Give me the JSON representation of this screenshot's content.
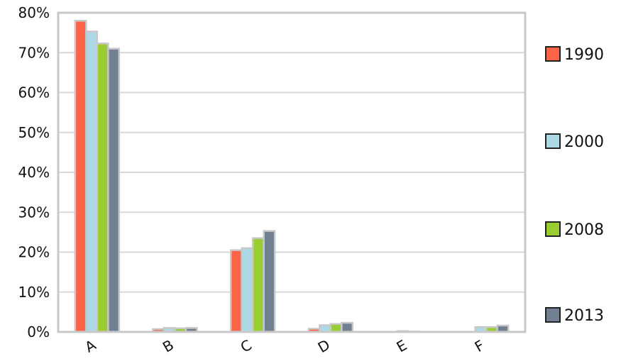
{
  "chart_data": {
    "type": "bar",
    "title": "",
    "xlabel": "",
    "ylabel": "",
    "categories": [
      "A",
      "B",
      "C",
      "D",
      "E",
      "F"
    ],
    "series": [
      {
        "name": "1990",
        "color": "#ff6347",
        "values": [
          78.0,
          0.7,
          20.5,
          0.8,
          0.0,
          0.0
        ]
      },
      {
        "name": "2000",
        "color": "#add8e6",
        "values": [
          75.3,
          1.0,
          21.0,
          1.7,
          0.2,
          1.2
        ]
      },
      {
        "name": "2008",
        "color": "#9acd32",
        "values": [
          72.3,
          0.9,
          23.5,
          2.0,
          0.1,
          1.2
        ]
      },
      {
        "name": "2013",
        "color": "#708090",
        "values": [
          71.0,
          1.0,
          25.3,
          2.3,
          0.0,
          1.6
        ]
      }
    ],
    "ylim": [
      0,
      80
    ],
    "y_ticks": [
      "0%",
      "10%",
      "20%",
      "30%",
      "40%",
      "50%",
      "60%",
      "70%",
      "80%"
    ],
    "grid": true,
    "legend_position": "right"
  }
}
